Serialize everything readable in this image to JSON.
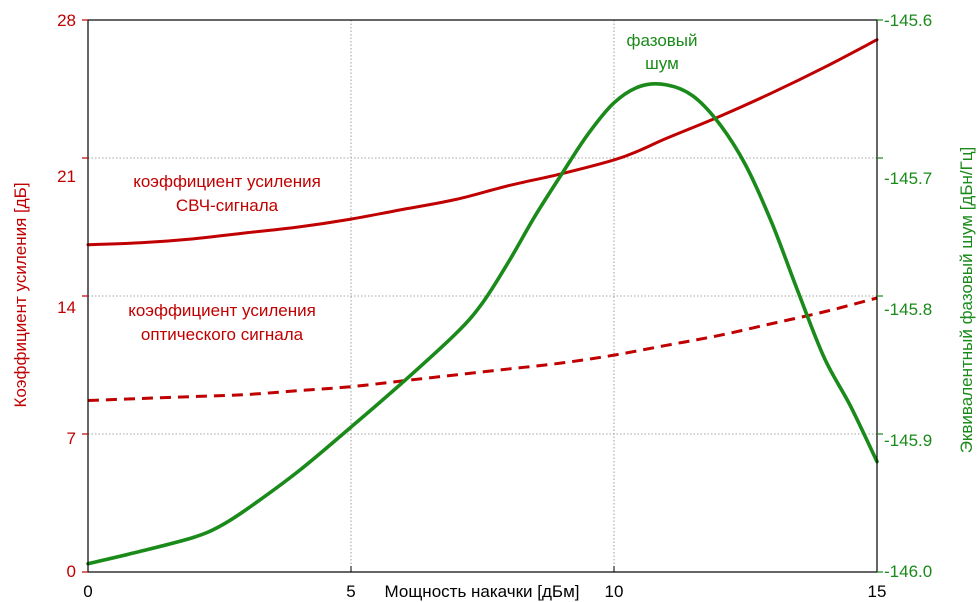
{
  "chart_data": {
    "type": "line",
    "xlabel": "Мощность накачки [дБм]",
    "ylabel_left": "Коэффициент усиления [дБ]",
    "ylabel_right": "Эквивалентный фазовый шум [дБн/Гц]",
    "xlim": [
      0,
      15
    ],
    "ylim_left": [
      0,
      28
    ],
    "ylim_right": [
      -146.0,
      -145.6
    ],
    "xticks": [
      "0",
      "5",
      "10",
      "15"
    ],
    "yticks_left": [
      "0",
      "7",
      "14",
      "21",
      "28"
    ],
    "yticks_right": [
      "-146.0",
      "-145.9",
      "-145.8",
      "-145.7",
      "-145.6"
    ],
    "grid": true,
    "colors": {
      "gain": "#c00000",
      "noise": "#1a8a1a",
      "axis": "#000000",
      "grid": "#888888"
    },
    "series": [
      {
        "key": "rf_gain",
        "axis": "left",
        "style": "solid",
        "color": "#c00000",
        "x": [
          0,
          1,
          2,
          3,
          4,
          5,
          6,
          7,
          8,
          9,
          10,
          10.5,
          11,
          12,
          13,
          14,
          15
        ],
        "y": [
          16.6,
          16.7,
          16.9,
          17.2,
          17.5,
          17.9,
          18.4,
          18.9,
          19.6,
          20.2,
          20.9,
          21.4,
          22.0,
          23.1,
          24.3,
          25.6,
          27.0
        ]
      },
      {
        "key": "optical_gain",
        "axis": "left",
        "style": "dashed",
        "color": "#c00000",
        "x": [
          0,
          1,
          2,
          3,
          4,
          5,
          6,
          7,
          8,
          9,
          10,
          11,
          12,
          13,
          14,
          15
        ],
        "y": [
          8.7,
          8.8,
          8.9,
          9.0,
          9.2,
          9.4,
          9.7,
          10.0,
          10.3,
          10.6,
          11.0,
          11.5,
          12.0,
          12.6,
          13.2,
          13.9
        ]
      },
      {
        "key": "phase_noise",
        "axis": "right",
        "style": "solid",
        "color": "#1a8a1a",
        "x": [
          0,
          1,
          2,
          2.5,
          3,
          4,
          5,
          6,
          7,
          7.5,
          8,
          8.5,
          9,
          9.5,
          10,
          10.5,
          11,
          11.5,
          12,
          12.5,
          13,
          13.5,
          14,
          14.5,
          15
        ],
        "y": [
          -145.994,
          -145.985,
          -145.975,
          -145.967,
          -145.955,
          -145.927,
          -145.895,
          -145.862,
          -145.827,
          -145.805,
          -145.775,
          -145.742,
          -145.712,
          -145.683,
          -145.66,
          -145.648,
          -145.647,
          -145.655,
          -145.675,
          -145.705,
          -145.747,
          -145.797,
          -145.845,
          -145.88,
          -145.92
        ]
      }
    ],
    "annotations": [
      {
        "id": "rf",
        "lines": [
          "коэффициент усиления",
          "СВЧ-сигнала"
        ],
        "color": "#c00000"
      },
      {
        "id": "optical",
        "lines": [
          "коэффициент усиления",
          "оптического сигнала"
        ],
        "color": "#c00000"
      },
      {
        "id": "noise",
        "lines": [
          "фазовый",
          "шум"
        ],
        "color": "#1a8a1a"
      }
    ]
  }
}
